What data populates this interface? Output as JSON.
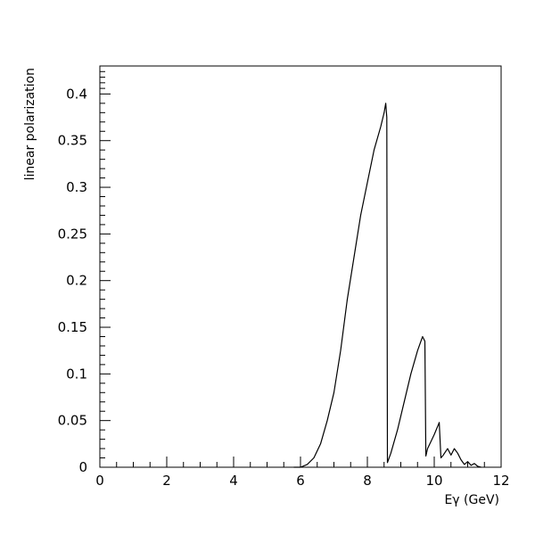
{
  "chart_data": {
    "type": "line",
    "title": "",
    "xlabel": "Eγ (GeV)",
    "ylabel": "linear polarization",
    "xlim": [
      0,
      12
    ],
    "ylim": [
      0,
      0.43
    ],
    "grid": false,
    "legend": "none",
    "x_ticks": [
      0,
      2,
      4,
      6,
      8,
      10,
      12
    ],
    "x_tick_labels": [
      "0",
      "2",
      "4",
      "6",
      "8",
      "10",
      "12"
    ],
    "y_ticks": [
      0,
      0.05,
      0.1,
      0.15,
      0.2,
      0.25,
      0.3,
      0.35,
      0.4
    ],
    "y_tick_labels": [
      "0",
      "0.05",
      "0.1",
      "0.15",
      "0.2",
      "0.25",
      "0.3",
      "0.35",
      "0.4"
    ],
    "series": [
      {
        "color": "#000000",
        "x": [
          5.8,
          6.0,
          6.2,
          6.4,
          6.6,
          6.8,
          7.0,
          7.2,
          7.4,
          7.6,
          7.8,
          8.0,
          8.2,
          8.4,
          8.5,
          8.55,
          8.58,
          8.6,
          8.7,
          8.9,
          9.1,
          9.3,
          9.5,
          9.65,
          9.72,
          9.75,
          9.8,
          10.0,
          10.15,
          10.2,
          10.25,
          10.4,
          10.5,
          10.6,
          10.7,
          10.8,
          10.9,
          11.0,
          11.1,
          11.2,
          11.3,
          11.4
        ],
        "y": [
          0,
          0.0,
          0.003,
          0.01,
          0.025,
          0.05,
          0.08,
          0.125,
          0.18,
          0.225,
          0.27,
          0.305,
          0.34,
          0.365,
          0.38,
          0.39,
          0.375,
          0.005,
          0.015,
          0.04,
          0.07,
          0.1,
          0.125,
          0.14,
          0.135,
          0.012,
          0.02,
          0.035,
          0.048,
          0.01,
          0.012,
          0.02,
          0.013,
          0.02,
          0.015,
          0.008,
          0.003,
          0.006,
          0.002,
          0.004,
          0.001,
          0.0
        ]
      }
    ]
  }
}
